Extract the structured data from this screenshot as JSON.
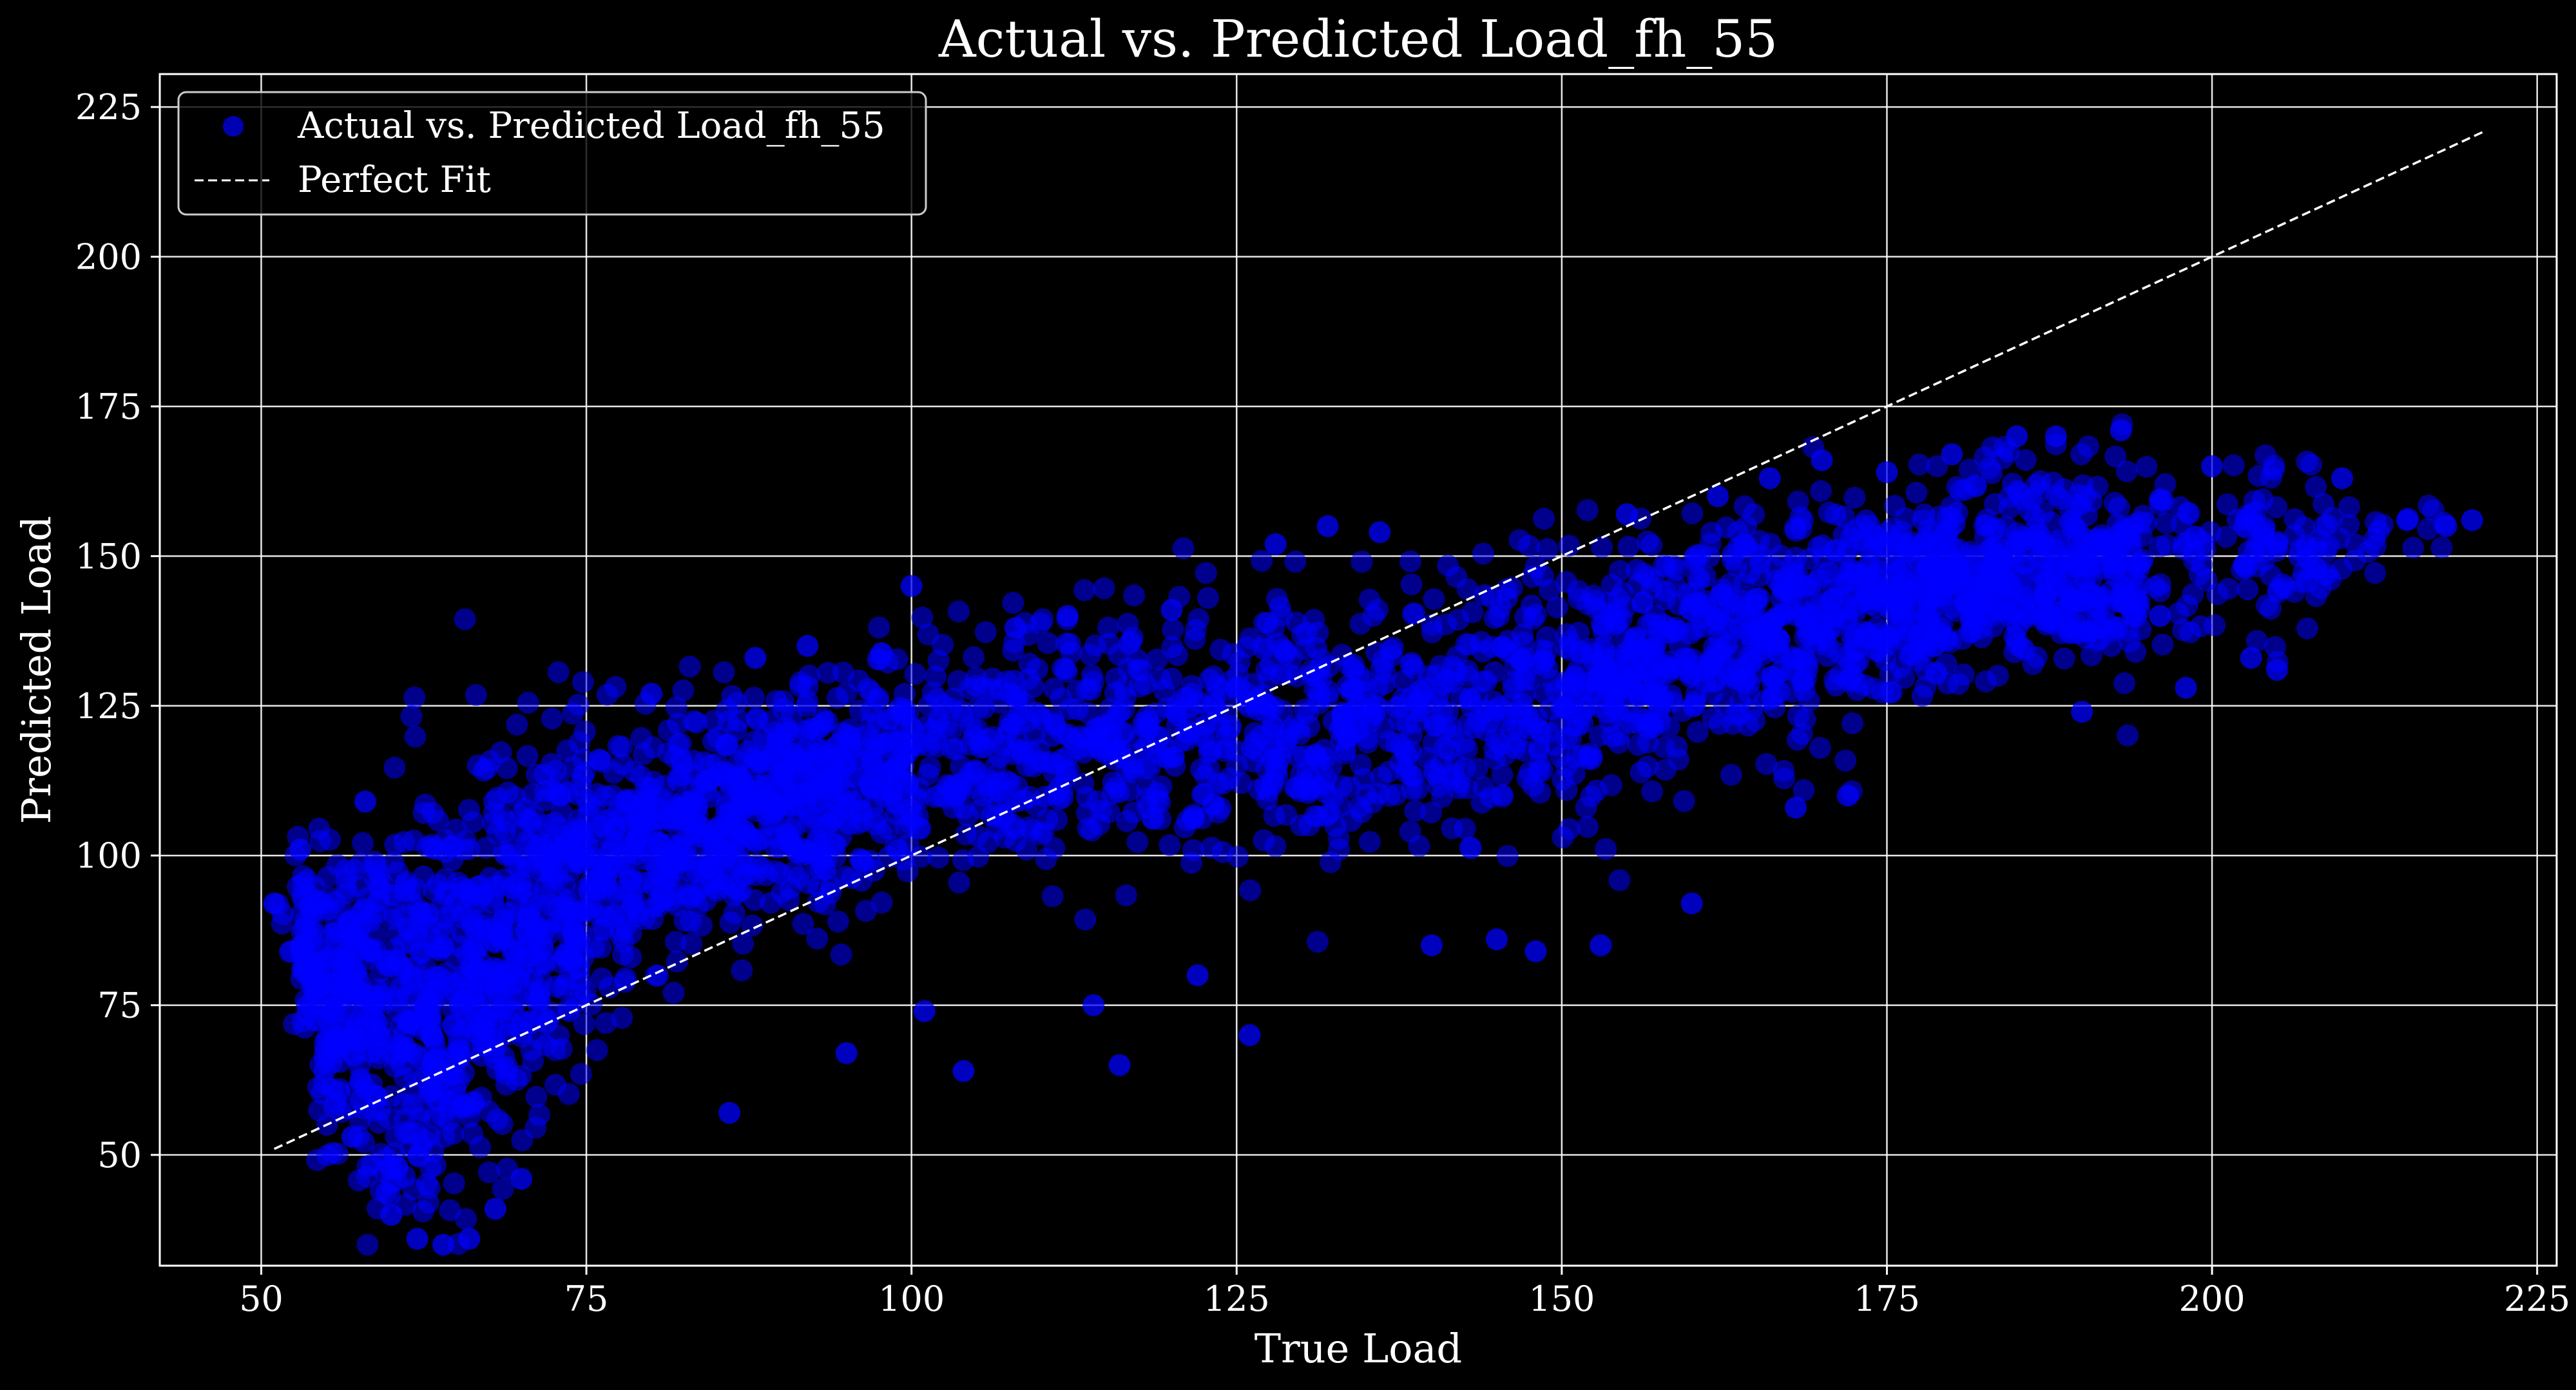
{
  "chart_data": {
    "type": "scatter",
    "title": "Actual vs. Predicted Load_fh_55",
    "xlabel": "True Load",
    "ylabel": "Predicted Load",
    "xlim": [
      42.2,
      226.5
    ],
    "ylim": [
      31.5,
      230.5
    ],
    "xticks": [
      50,
      75,
      100,
      125,
      150,
      175,
      200,
      225
    ],
    "yticks": [
      50,
      75,
      100,
      125,
      150,
      175,
      200,
      225
    ],
    "grid": true,
    "legend": {
      "position": "top-left"
    },
    "series": [
      {
        "name": "Actual vs. Predicted Load_fh_55",
        "kind": "scatter",
        "color": "#0000ff",
        "trend": {
          "x": [
            51,
            55,
            60,
            65,
            70,
            75,
            80,
            90,
            100,
            110,
            120,
            130,
            140,
            150,
            160,
            170,
            180,
            190,
            200,
            210,
            220
          ],
          "center": [
            92,
            78,
            72,
            76,
            88,
            95,
            102,
            110,
            115,
            118,
            120,
            122,
            125,
            130,
            135,
            140,
            145,
            148,
            150,
            152,
            156
          ],
          "spread": [
            4,
            14,
            22,
            24,
            20,
            16,
            13,
            12,
            12,
            12,
            13,
            14,
            14,
            14,
            13,
            12,
            11,
            10,
            9,
            7,
            2
          ]
        },
        "points": [
          [
            51,
            92
          ],
          [
            53,
            101
          ],
          [
            54,
            79
          ],
          [
            57,
            53
          ],
          [
            58,
            109
          ],
          [
            60,
            40
          ],
          [
            62,
            36
          ],
          [
            64,
            35
          ],
          [
            66,
            36
          ],
          [
            68,
            41
          ],
          [
            70,
            46
          ],
          [
            73,
            110
          ],
          [
            76,
            116
          ],
          [
            80,
            127
          ],
          [
            86,
            57
          ],
          [
            88,
            133
          ],
          [
            92,
            135
          ],
          [
            95,
            67
          ],
          [
            100,
            145
          ],
          [
            101,
            74
          ],
          [
            104,
            64
          ],
          [
            108,
            138
          ],
          [
            112,
            140
          ],
          [
            114,
            75
          ],
          [
            116,
            65
          ],
          [
            120,
            141
          ],
          [
            122,
            80
          ],
          [
            126,
            70
          ],
          [
            128,
            152
          ],
          [
            132,
            155
          ],
          [
            136,
            154
          ],
          [
            140,
            85
          ],
          [
            145,
            86
          ],
          [
            148,
            84
          ],
          [
            153,
            85
          ],
          [
            155,
            157
          ],
          [
            160,
            92
          ],
          [
            162,
            160
          ],
          [
            166,
            163
          ],
          [
            168,
            108
          ],
          [
            170,
            166
          ],
          [
            172,
            110
          ],
          [
            175,
            164
          ],
          [
            180,
            167
          ],
          [
            185,
            170
          ],
          [
            188,
            170
          ],
          [
            190,
            124
          ],
          [
            193,
            171
          ],
          [
            196,
            140
          ],
          [
            198,
            128
          ],
          [
            200,
            165
          ],
          [
            203,
            133
          ],
          [
            205,
            131
          ],
          [
            208,
            148
          ],
          [
            210,
            163
          ],
          [
            215,
            156
          ],
          [
            218,
            155
          ],
          [
            220,
            156
          ]
        ]
      },
      {
        "name": "Perfect Fit",
        "kind": "line",
        "style": "dashed",
        "color": "#ffffff",
        "x": [
          51,
          221
        ],
        "y": [
          51,
          221
        ]
      }
    ]
  }
}
